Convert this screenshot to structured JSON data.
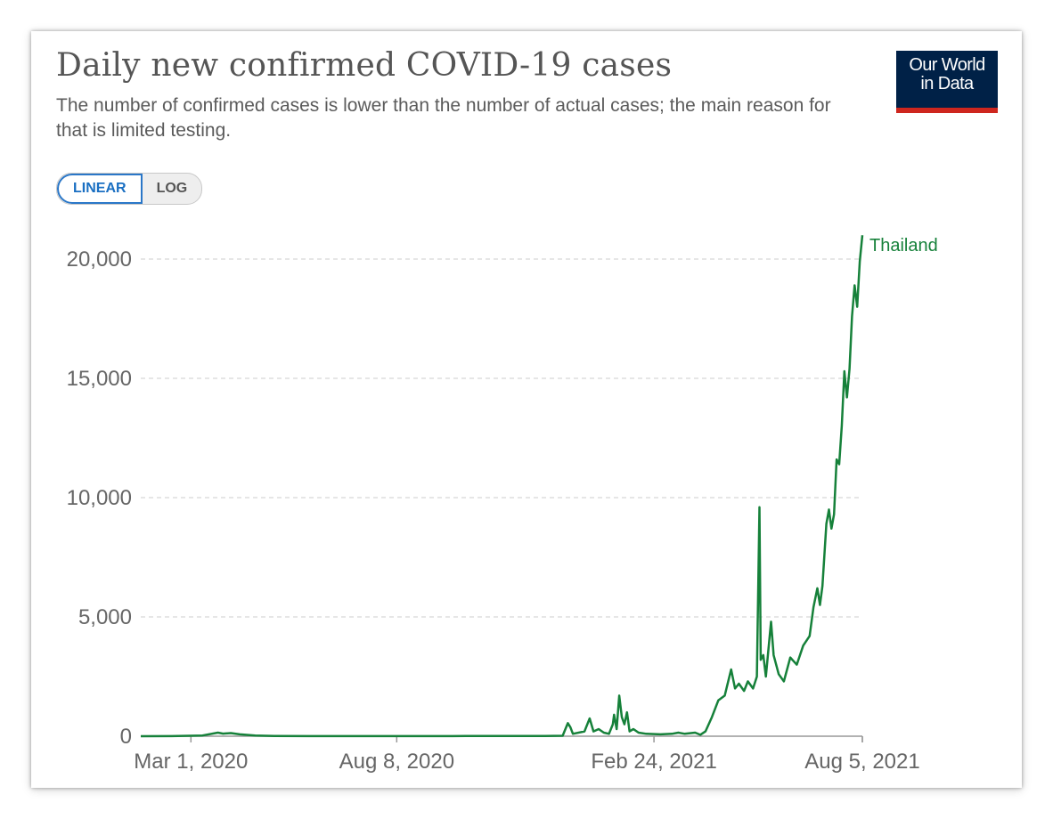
{
  "header": {
    "title": "Daily new confirmed COVID-19 cases",
    "subtitle": "The number of confirmed cases is lower than the number of actual cases; the main reason for that is limited testing."
  },
  "logo": {
    "line1": "Our World",
    "line2": "in Data"
  },
  "scale_toggle": {
    "linear_label": "LINEAR",
    "log_label": "LOG",
    "selected": "LINEAR"
  },
  "colors": {
    "series": "#16813a",
    "grid": "#dddddd",
    "axis": "#999999"
  },
  "chart_data": {
    "type": "line",
    "title": "Daily new confirmed COVID-19 cases",
    "ylim": [
      0,
      21000
    ],
    "yticks": [
      0,
      5000,
      10000,
      15000,
      20000
    ],
    "ytick_labels": [
      "0",
      "5,000",
      "10,000",
      "15,000",
      "20,000"
    ],
    "xticks": [
      "2020-03-01",
      "2020-08-08",
      "2021-02-24",
      "2021-08-05"
    ],
    "xtick_labels": [
      "Mar 1, 2020",
      "Aug 8, 2020",
      "Feb 24, 2021",
      "Aug 5, 2021"
    ],
    "grid": "horizontal dashed",
    "legend": "inline label at line end",
    "series": [
      {
        "name": "Thailand",
        "points": [
          [
            "2020-01-22",
            0
          ],
          [
            "2020-02-15",
            5
          ],
          [
            "2020-03-10",
            30
          ],
          [
            "2020-03-22",
            150
          ],
          [
            "2020-03-26",
            110
          ],
          [
            "2020-04-01",
            130
          ],
          [
            "2020-04-08",
            80
          ],
          [
            "2020-04-20",
            30
          ],
          [
            "2020-05-05",
            10
          ],
          [
            "2020-06-01",
            5
          ],
          [
            "2020-08-01",
            5
          ],
          [
            "2020-10-01",
            8
          ],
          [
            "2020-12-01",
            10
          ],
          [
            "2020-12-15",
            20
          ],
          [
            "2020-12-19",
            550
          ],
          [
            "2020-12-21",
            380
          ],
          [
            "2020-12-23",
            100
          ],
          [
            "2021-01-01",
            200
          ],
          [
            "2021-01-05",
            745
          ],
          [
            "2021-01-08",
            200
          ],
          [
            "2021-01-12",
            300
          ],
          [
            "2021-01-16",
            150
          ],
          [
            "2021-01-20",
            100
          ],
          [
            "2021-01-23",
            500
          ],
          [
            "2021-01-24",
            900
          ],
          [
            "2021-01-26",
            300
          ],
          [
            "2021-01-28",
            1700
          ],
          [
            "2021-01-30",
            800
          ],
          [
            "2021-02-01",
            500
          ],
          [
            "2021-02-03",
            1000
          ],
          [
            "2021-02-05",
            200
          ],
          [
            "2021-02-08",
            300
          ],
          [
            "2021-02-12",
            150
          ],
          [
            "2021-02-18",
            100
          ],
          [
            "2021-03-01",
            80
          ],
          [
            "2021-03-10",
            100
          ],
          [
            "2021-03-15",
            150
          ],
          [
            "2021-03-20",
            100
          ],
          [
            "2021-03-28",
            150
          ],
          [
            "2021-04-01",
            60
          ],
          [
            "2021-04-05",
            200
          ],
          [
            "2021-04-10",
            800
          ],
          [
            "2021-04-15",
            1500
          ],
          [
            "2021-04-20",
            1700
          ],
          [
            "2021-04-25",
            2800
          ],
          [
            "2021-04-28",
            2000
          ],
          [
            "2021-05-01",
            2200
          ],
          [
            "2021-05-05",
            1900
          ],
          [
            "2021-05-08",
            2300
          ],
          [
            "2021-05-12",
            2000
          ],
          [
            "2021-05-15",
            2500
          ],
          [
            "2021-05-17",
            9600
          ],
          [
            "2021-05-18",
            3200
          ],
          [
            "2021-05-20",
            3400
          ],
          [
            "2021-05-22",
            2500
          ],
          [
            "2021-05-26",
            4800
          ],
          [
            "2021-05-28",
            3400
          ],
          [
            "2021-06-01",
            2600
          ],
          [
            "2021-06-05",
            2300
          ],
          [
            "2021-06-10",
            3300
          ],
          [
            "2021-06-15",
            3000
          ],
          [
            "2021-06-20",
            3800
          ],
          [
            "2021-06-25",
            4200
          ],
          [
            "2021-06-28",
            5400
          ],
          [
            "2021-07-01",
            6200
          ],
          [
            "2021-07-03",
            5500
          ],
          [
            "2021-07-05",
            6300
          ],
          [
            "2021-07-08",
            8900
          ],
          [
            "2021-07-10",
            9500
          ],
          [
            "2021-07-12",
            8700
          ],
          [
            "2021-07-14",
            9300
          ],
          [
            "2021-07-16",
            11600
          ],
          [
            "2021-07-18",
            11400
          ],
          [
            "2021-07-20",
            13000
          ],
          [
            "2021-07-22",
            15300
          ],
          [
            "2021-07-24",
            14200
          ],
          [
            "2021-07-26",
            15400
          ],
          [
            "2021-07-28",
            17600
          ],
          [
            "2021-07-30",
            18900
          ],
          [
            "2021-08-01",
            18000
          ],
          [
            "2021-08-03",
            19900
          ],
          [
            "2021-08-05",
            21000
          ]
        ]
      }
    ]
  }
}
